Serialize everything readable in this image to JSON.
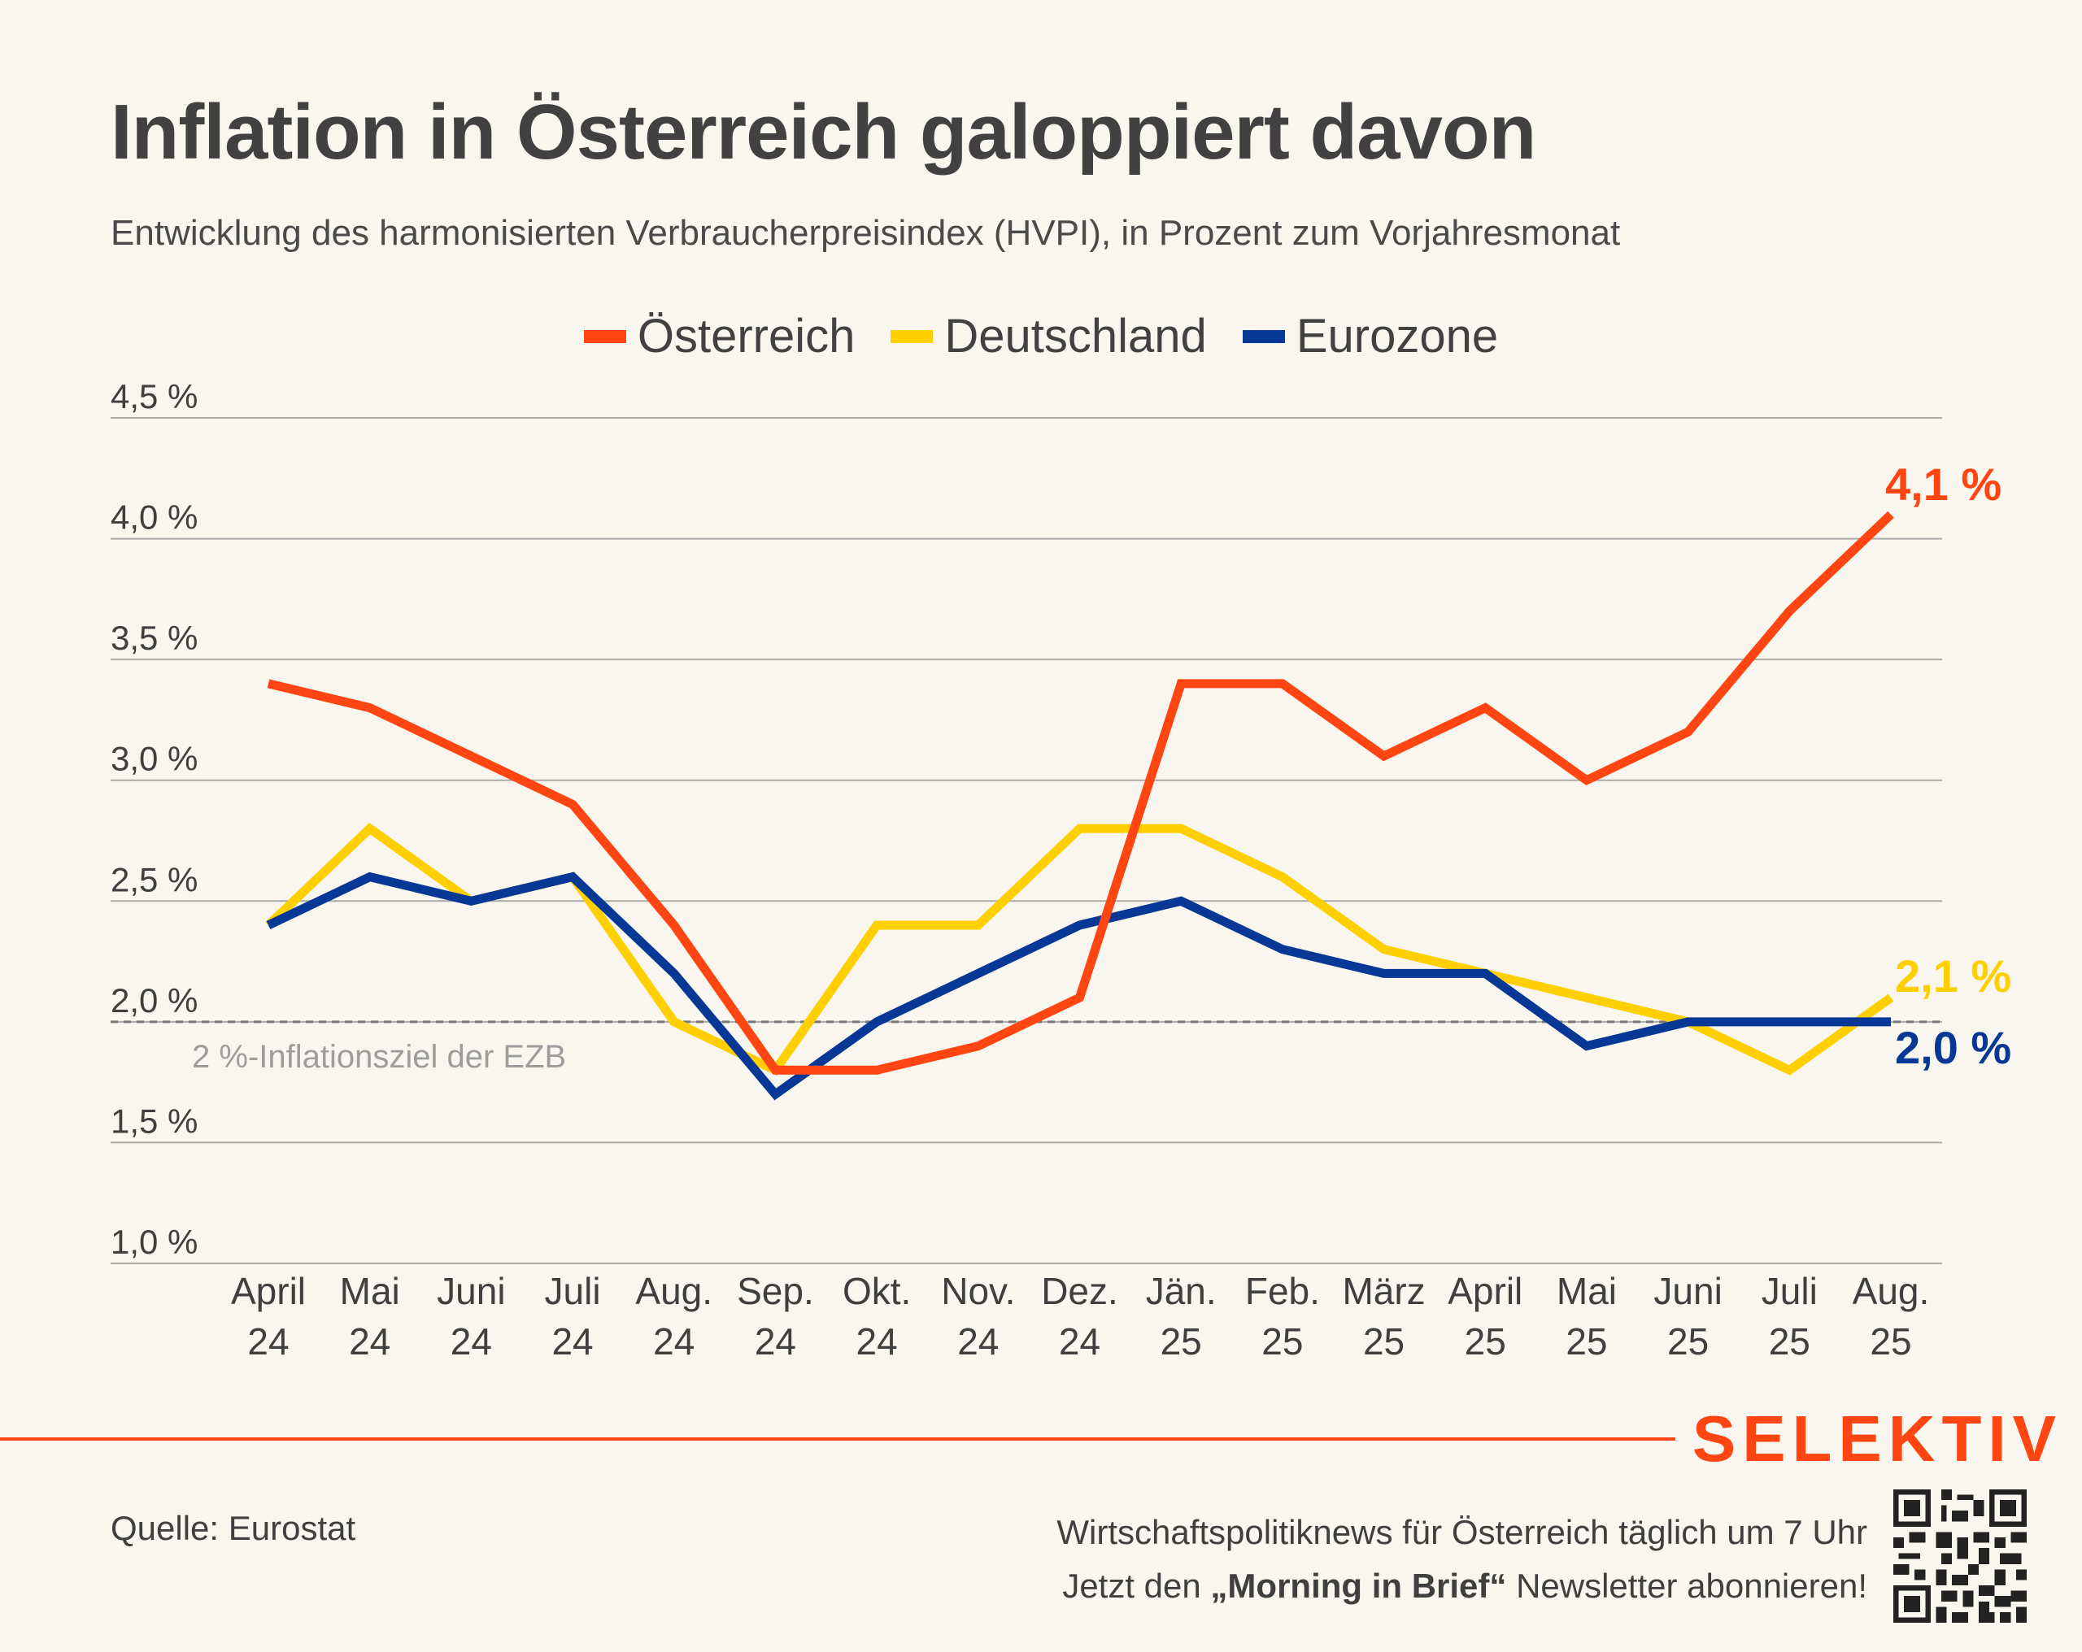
{
  "header": {
    "title": "Inflation in Österreich galoppiert davon",
    "subtitle": "Entwicklung des harmonisierten Verbraucherpreisindex (HVPI), in Prozent zum Vorjahresmonat"
  },
  "colors": {
    "oesterreich": "#ff4612",
    "deutschland": "#ffcf00",
    "eurozone": "#073896",
    "grid": "#aaaaaa",
    "target_line": "#777777",
    "target_label": "#9d9d9d",
    "brand": "#ff4612"
  },
  "chart_data": {
    "type": "line",
    "categories": [
      [
        "April",
        "24"
      ],
      [
        "Mai",
        "24"
      ],
      [
        "Juni",
        "24"
      ],
      [
        "Juli",
        "24"
      ],
      [
        "Aug.",
        "24"
      ],
      [
        "Sep.",
        "24"
      ],
      [
        "Okt.",
        "24"
      ],
      [
        "Nov.",
        "24"
      ],
      [
        "Dez.",
        "24"
      ],
      [
        "Jän.",
        "25"
      ],
      [
        "Feb.",
        "25"
      ],
      [
        "März",
        "25"
      ],
      [
        "April",
        "25"
      ],
      [
        "Mai",
        "25"
      ],
      [
        "Juni",
        "25"
      ],
      [
        "Juli",
        "25"
      ],
      [
        "Aug.",
        "25"
      ]
    ],
    "series": [
      {
        "name": "Österreich",
        "color": "#ff4612",
        "values": [
          3.4,
          3.3,
          3.1,
          2.9,
          2.4,
          1.8,
          1.8,
          1.9,
          2.1,
          3.4,
          3.4,
          3.1,
          3.3,
          3.0,
          3.2,
          3.7,
          4.1
        ],
        "end_label": "4,1 %"
      },
      {
        "name": "Deutschland",
        "color": "#ffcf00",
        "values": [
          2.4,
          2.8,
          2.5,
          2.6,
          2.0,
          1.8,
          2.4,
          2.4,
          2.8,
          2.8,
          2.6,
          2.3,
          2.2,
          2.1,
          2.0,
          1.8,
          2.1
        ],
        "end_label": "2,1 %"
      },
      {
        "name": "Eurozone",
        "color": "#073896",
        "values": [
          2.4,
          2.6,
          2.5,
          2.6,
          2.2,
          1.7,
          2.0,
          2.2,
          2.4,
          2.5,
          2.3,
          2.2,
          2.2,
          1.9,
          2.0,
          2.0,
          2.0
        ],
        "end_label": "2,0 %"
      }
    ],
    "y_ticks": [
      {
        "value": 4.5,
        "label": "4,5 %"
      },
      {
        "value": 4.0,
        "label": "4,0 %"
      },
      {
        "value": 3.5,
        "label": "3,5 %"
      },
      {
        "value": 3.0,
        "label": "3,0 %"
      },
      {
        "value": 2.5,
        "label": "2,5 %"
      },
      {
        "value": 2.0,
        "label": "2,0 %"
      },
      {
        "value": 1.5,
        "label": "1,5 %"
      },
      {
        "value": 1.0,
        "label": "1,0 %"
      }
    ],
    "ylim": [
      1.0,
      4.5
    ],
    "grid": true,
    "legend_position": "top-center",
    "reference_line": {
      "value": 2.0,
      "label": "2 %-Inflationsziel der EZB",
      "style": "dashed"
    }
  },
  "footer": {
    "brand": "SELEKTIV",
    "source": "Quelle: Eurostat",
    "promo_line1": "Wirtschaftspolitiknews für Österreich täglich um 7 Uhr",
    "promo_line2_pre": "Jetzt den ",
    "promo_line2_bold": "„Morning in Brief“",
    "promo_line2_post": " Newsletter abonnieren!",
    "qr_icon": "qr-code-icon"
  }
}
